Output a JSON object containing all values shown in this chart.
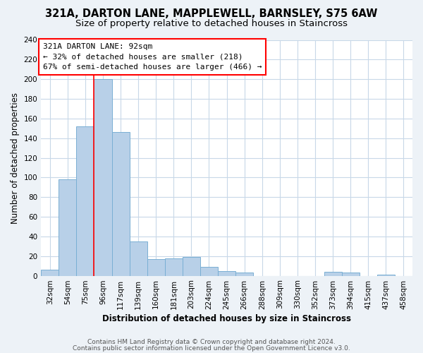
{
  "title": "321A, DARTON LANE, MAPPLEWELL, BARNSLEY, S75 6AW",
  "subtitle": "Size of property relative to detached houses in Staincross",
  "xlabel": "Distribution of detached houses by size in Staincross",
  "ylabel": "Number of detached properties",
  "bar_color": "#b8d0e8",
  "bar_edge_color": "#7aafd4",
  "bin_labels": [
    "32sqm",
    "54sqm",
    "75sqm",
    "96sqm",
    "117sqm",
    "139sqm",
    "160sqm",
    "181sqm",
    "203sqm",
    "224sqm",
    "245sqm",
    "266sqm",
    "288sqm",
    "309sqm",
    "330sqm",
    "352sqm",
    "373sqm",
    "394sqm",
    "415sqm",
    "437sqm",
    "458sqm"
  ],
  "bar_heights": [
    6,
    98,
    152,
    200,
    146,
    35,
    17,
    18,
    19,
    9,
    5,
    3,
    0,
    0,
    0,
    0,
    4,
    3,
    0,
    1,
    0
  ],
  "ylim": [
    0,
    240
  ],
  "yticks": [
    0,
    20,
    40,
    60,
    80,
    100,
    120,
    140,
    160,
    180,
    200,
    220,
    240
  ],
  "property_line_x": 3,
  "property_line_label": "321A DARTON LANE: 92sqm",
  "annotation_line1": "← 32% of detached houses are smaller (218)",
  "annotation_line2": "67% of semi-detached houses are larger (466) →",
  "footer1": "Contains HM Land Registry data © Crown copyright and database right 2024.",
  "footer2": "Contains public sector information licensed under the Open Government Licence v3.0.",
  "background_color": "#edf2f7",
  "plot_bg_color": "#ffffff",
  "grid_color": "#c8d8e8",
  "title_fontsize": 10.5,
  "subtitle_fontsize": 9.5,
  "axis_label_fontsize": 8.5,
  "tick_fontsize": 7.5,
  "annotation_fontsize": 8,
  "footer_fontsize": 6.5
}
